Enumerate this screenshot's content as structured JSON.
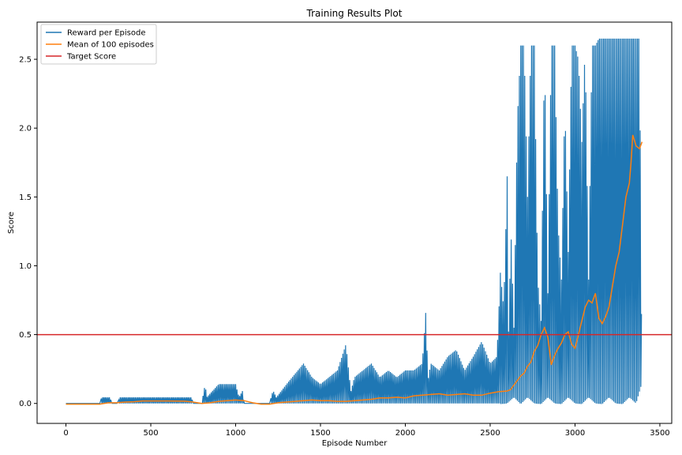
{
  "chart_data": {
    "type": "line",
    "title": "Training Results Plot",
    "xlabel": "Episode Number",
    "ylabel": "Score",
    "xlim": [
      -170,
      3570
    ],
    "ylim": [
      -0.145,
      2.77
    ],
    "xticks": [
      0,
      500,
      1000,
      1500,
      2000,
      2500,
      3000,
      3500
    ],
    "yticks": [
      0.0,
      0.5,
      1.0,
      1.5,
      2.0,
      2.5
    ],
    "xtick_labels": [
      "0",
      "500",
      "1000",
      "1500",
      "2000",
      "2500",
      "3000",
      "3500"
    ],
    "ytick_labels": [
      "0.0",
      "0.5",
      "1.0",
      "1.5",
      "2.0",
      "2.5"
    ],
    "grid": false,
    "legend_position": "top-left",
    "series": [
      {
        "name": "Reward per Episode",
        "color": "#1f77b4",
        "x": [
          0,
          200,
          210,
          260,
          270,
          300,
          320,
          400,
          500,
          600,
          700,
          740,
          750,
          800,
          820,
          830,
          900,
          950,
          1000,
          1020,
          1040,
          1050,
          1100,
          1200,
          1220,
          1240,
          1300,
          1400,
          1450,
          1500,
          1550,
          1600,
          1650,
          1670,
          1680,
          1700,
          1750,
          1800,
          1850,
          1900,
          1950,
          2000,
          2050,
          2100,
          2125,
          2130,
          2150,
          2200,
          2250,
          2300,
          2350,
          2400,
          2450,
          2500,
          2540,
          2560,
          2580,
          2600,
          2610,
          2620,
          2640,
          2660,
          2680,
          2700,
          2720,
          2740,
          2760,
          2780,
          2800,
          2820,
          2840,
          2860,
          2880,
          2900,
          2920,
          2940,
          2960,
          2980,
          3000,
          3020,
          3040,
          3060,
          3080,
          3100,
          3120,
          3140,
          3160,
          3180,
          3200,
          3220,
          3240,
          3260,
          3280,
          3300,
          3320,
          3340,
          3360,
          3380,
          3395
        ],
        "y": [
          0.0,
          0.0,
          0.045,
          0.045,
          0.0,
          0.0,
          0.045,
          0.045,
          0.045,
          0.045,
          0.045,
          0.045,
          0.0,
          0.0,
          0.14,
          0.045,
          0.14,
          0.14,
          0.14,
          0.045,
          0.09,
          0.0,
          0.0,
          0.0,
          0.095,
          0.045,
          0.14,
          0.29,
          0.19,
          0.14,
          0.19,
          0.24,
          0.43,
          0.19,
          0.09,
          0.19,
          0.24,
          0.29,
          0.19,
          0.24,
          0.19,
          0.24,
          0.24,
          0.29,
          0.75,
          0.14,
          0.29,
          0.24,
          0.34,
          0.39,
          0.24,
          0.34,
          0.45,
          0.29,
          0.34,
          0.95,
          0.69,
          1.65,
          0.24,
          1.35,
          0.55,
          2.05,
          2.6,
          2.6,
          1.5,
          2.6,
          2.6,
          0.9,
          0.6,
          2.6,
          0.8,
          2.6,
          2.6,
          1.3,
          0.9,
          2.2,
          1.1,
          2.6,
          2.6,
          2.5,
          1.9,
          2.6,
          0.9,
          2.6,
          2.6,
          2.65,
          2.65,
          2.65,
          2.65,
          2.65,
          2.65,
          2.65,
          2.65,
          2.65,
          2.65,
          2.65,
          2.65,
          2.65,
          0.15
        ],
        "low_x": [
          2560,
          2600,
          2640,
          2680,
          2720,
          2760,
          2800,
          2840,
          2880,
          2920,
          2960,
          3000,
          3040,
          3080,
          3120,
          3160,
          3200,
          3240,
          3280,
          3320,
          3360,
          3395
        ],
        "low_y": [
          -0.005,
          0.0,
          0.045,
          -0.005,
          0.045,
          0.0,
          -0.005,
          0.045,
          0.0,
          -0.005,
          0.045,
          0.0,
          -0.005,
          0.045,
          0.0,
          -0.005,
          0.045,
          0.0,
          -0.005,
          0.045,
          0.0,
          0.15
        ]
      },
      {
        "name": "Mean of 100 episodes",
        "color": "#ff7f0e",
        "x": [
          0,
          100,
          200,
          250,
          300,
          350,
          400,
          450,
          500,
          600,
          700,
          750,
          800,
          850,
          900,
          950,
          1000,
          1050,
          1100,
          1150,
          1200,
          1250,
          1300,
          1350,
          1400,
          1450,
          1500,
          1550,
          1600,
          1650,
          1700,
          1750,
          1800,
          1850,
          1900,
          1950,
          2000,
          2050,
          2100,
          2150,
          2200,
          2250,
          2300,
          2350,
          2400,
          2450,
          2500,
          2550,
          2600,
          2620,
          2650,
          2680,
          2700,
          2720,
          2740,
          2760,
          2780,
          2800,
          2820,
          2840,
          2860,
          2880,
          2900,
          2920,
          2940,
          2960,
          2980,
          3000,
          3020,
          3040,
          3060,
          3080,
          3100,
          3120,
          3140,
          3160,
          3180,
          3200,
          3220,
          3240,
          3260,
          3280,
          3300,
          3320,
          3330,
          3340,
          3360,
          3380,
          3395
        ],
        "y": [
          -0.005,
          -0.005,
          -0.005,
          0.005,
          0.005,
          0.01,
          0.012,
          0.018,
          0.018,
          0.018,
          0.016,
          0.01,
          0.0,
          0.005,
          0.015,
          0.02,
          0.025,
          0.02,
          0.005,
          -0.005,
          -0.005,
          0.005,
          0.01,
          0.015,
          0.02,
          0.025,
          0.02,
          0.02,
          0.015,
          0.015,
          0.02,
          0.025,
          0.03,
          0.04,
          0.04,
          0.045,
          0.04,
          0.055,
          0.06,
          0.065,
          0.07,
          0.06,
          0.065,
          0.07,
          0.06,
          0.06,
          0.075,
          0.085,
          0.09,
          0.1,
          0.15,
          0.2,
          0.22,
          0.27,
          0.3,
          0.38,
          0.42,
          0.5,
          0.55,
          0.48,
          0.28,
          0.35,
          0.4,
          0.44,
          0.5,
          0.52,
          0.43,
          0.4,
          0.5,
          0.6,
          0.7,
          0.75,
          0.73,
          0.8,
          0.62,
          0.58,
          0.63,
          0.7,
          0.85,
          1.0,
          1.1,
          1.3,
          1.5,
          1.6,
          1.75,
          1.95,
          1.87,
          1.85,
          1.9
        ]
      },
      {
        "name": "Target Score",
        "color": "#d62728",
        "x": [
          -170,
          3570
        ],
        "y": [
          0.5,
          0.5
        ]
      }
    ]
  }
}
